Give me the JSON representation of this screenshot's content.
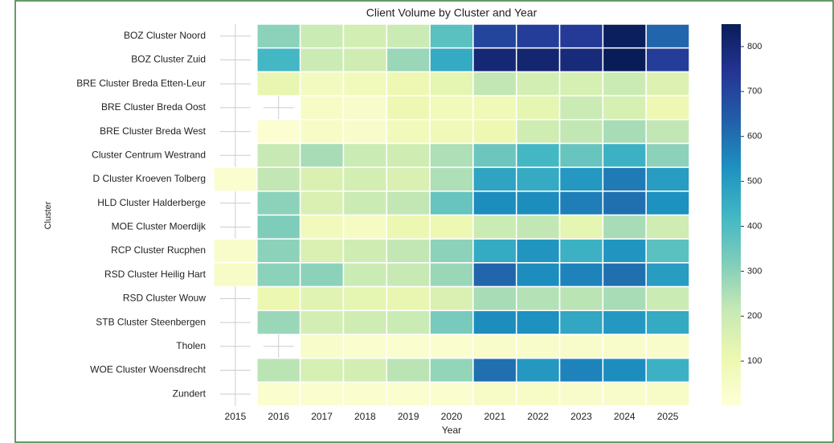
{
  "chart_data": {
    "type": "heatmap",
    "title": "Client Volume by Cluster and Year",
    "x_label": "Year",
    "y_label": "Cluster",
    "x_categories": [
      "2015",
      "2016",
      "2017",
      "2018",
      "2019",
      "2020",
      "2021",
      "2022",
      "2023",
      "2024",
      "2025"
    ],
    "y_categories": [
      "BOZ Cluster Noord",
      "BOZ Cluster Zuid",
      "BRE Cluster Breda Etten-Leur",
      "BRE Cluster Breda Oost",
      "BRE Cluster Breda West",
      "Cluster Centrum Westrand",
      "D Cluster Kroeven Tolberg",
      "HLD Cluster Halderberge",
      "MOE Cluster Moerdijk",
      "RCP Cluster Rucphen",
      "RSD Cluster Heilig Hart",
      "RSD Cluster Wouw",
      "STB Cluster Steenbergen",
      "Tholen",
      "WOE Cluster Woensdrecht",
      "Zundert"
    ],
    "values": [
      [
        null,
        300,
        200,
        180,
        200,
        380,
        700,
        720,
        730,
        840,
        620
      ],
      [
        null,
        420,
        200,
        190,
        280,
        460,
        800,
        810,
        790,
        850,
        720
      ],
      [
        null,
        120,
        70,
        80,
        100,
        130,
        220,
        180,
        170,
        200,
        150
      ],
      [
        null,
        null,
        50,
        40,
        100,
        80,
        90,
        130,
        200,
        170,
        100
      ],
      [
        null,
        20,
        50,
        40,
        80,
        90,
        100,
        190,
        220,
        260,
        220
      ],
      [
        null,
        210,
        260,
        200,
        190,
        250,
        350,
        420,
        360,
        440,
        300
      ],
      [
        30,
        220,
        160,
        180,
        160,
        250,
        480,
        460,
        510,
        580,
        500
      ],
      [
        null,
        300,
        160,
        200,
        220,
        360,
        540,
        540,
        570,
        600,
        530
      ],
      [
        null,
        320,
        80,
        60,
        110,
        100,
        200,
        220,
        130,
        260,
        190
      ],
      [
        40,
        300,
        160,
        190,
        220,
        300,
        460,
        520,
        440,
        520,
        380
      ],
      [
        50,
        300,
        300,
        200,
        210,
        280,
        620,
        540,
        560,
        600,
        500
      ],
      [
        null,
        110,
        140,
        130,
        120,
        160,
        260,
        240,
        230,
        260,
        200
      ],
      [
        null,
        280,
        180,
        190,
        200,
        330,
        540,
        530,
        470,
        510,
        460
      ],
      [
        null,
        null,
        40,
        30,
        30,
        30,
        40,
        40,
        40,
        40,
        40
      ],
      [
        null,
        230,
        170,
        180,
        230,
        290,
        600,
        510,
        560,
        540,
        440
      ],
      [
        null,
        30,
        30,
        30,
        30,
        30,
        50,
        50,
        40,
        40,
        50
      ]
    ],
    "colormap": [
      "#ffffd9",
      "#edf8b1",
      "#c7e9b4",
      "#7fcdbb",
      "#41b6c4",
      "#1d91c0",
      "#225ea8",
      "#253494",
      "#081d58"
    ],
    "clim": [
      0,
      850
    ],
    "cticks": [
      100,
      200,
      300,
      400,
      500,
      600,
      700,
      800
    ]
  }
}
